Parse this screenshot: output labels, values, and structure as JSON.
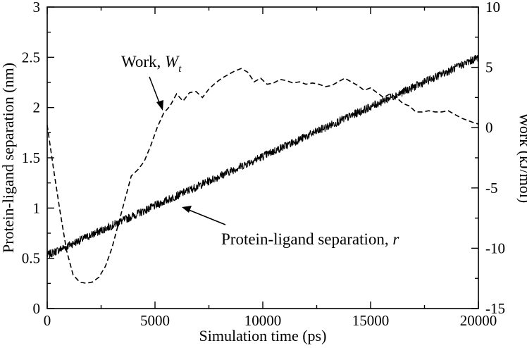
{
  "chart_data": {
    "type": "line",
    "xlabel": "Simulation time (ps)",
    "ylabel_left": "Protein-ligand separation (nm)",
    "ylabel_right": "Work (kJ/mol)",
    "xlim": [
      0,
      20000
    ],
    "ylim_left": [
      0,
      3
    ],
    "ylim_right": [
      -15,
      10
    ],
    "x_ticks": [
      "0",
      "5000",
      "10000",
      "15000",
      "20000"
    ],
    "y_left_ticks": [
      "0",
      "0.5",
      "1",
      "1.5",
      "2",
      "2.5",
      "3"
    ],
    "y_right_ticks": [
      "-15",
      "-10",
      "-5",
      "0",
      "5",
      "10"
    ],
    "series": [
      {
        "name": "Protein-ligand separation, r",
        "axis": "left",
        "style": "solid-noisy",
        "x": [
          0,
          20000
        ],
        "values": [
          0.53,
          2.5
        ],
        "noise_amplitude": 0.04
      },
      {
        "name": "Work, W_t",
        "axis": "right",
        "style": "dashed",
        "x": [
          0,
          300,
          600,
          900,
          1200,
          1500,
          1800,
          2100,
          2400,
          2700,
          3000,
          3300,
          3600,
          3900,
          4200,
          4500,
          4800,
          5100,
          5400,
          5700,
          6000,
          6300,
          6600,
          6900,
          7200,
          7500,
          7800,
          8100,
          8400,
          8700,
          9000,
          9300,
          9600,
          9900,
          10200,
          10500,
          10800,
          11100,
          11400,
          11700,
          12000,
          12300,
          12600,
          12900,
          13200,
          13500,
          13800,
          14100,
          14400,
          14700,
          15000,
          15300,
          15600,
          15900,
          16200,
          16500,
          16800,
          17100,
          17400,
          17700,
          18000,
          18300,
          18600,
          18900,
          19200,
          19500,
          19800,
          20000
        ],
        "values": [
          0.2,
          -3.5,
          -7.0,
          -10.2,
          -12.2,
          -12.8,
          -12.9,
          -12.8,
          -12.4,
          -11.5,
          -10.0,
          -8.0,
          -6.0,
          -4.0,
          -3.5,
          -2.8,
          -1.5,
          0.0,
          1.2,
          1.8,
          2.8,
          2.2,
          2.9,
          3.0,
          2.5,
          3.2,
          3.7,
          4.1,
          4.4,
          4.7,
          4.9,
          4.6,
          3.8,
          4.1,
          3.6,
          3.7,
          4.0,
          3.9,
          3.7,
          3.8,
          3.6,
          3.7,
          3.6,
          3.4,
          3.5,
          3.8,
          4.1,
          3.8,
          3.5,
          3.1,
          3.3,
          2.9,
          2.5,
          2.8,
          2.5,
          2.0,
          1.8,
          1.3,
          1.3,
          1.4,
          1.3,
          1.3,
          1.4,
          1.1,
          0.8,
          0.6,
          0.4,
          0.3
        ]
      }
    ],
    "annotations": {
      "work_label_main": "Work, ",
      "work_label_italic": "W",
      "work_label_sub": "t",
      "sep_label_main": "Protein-ligand separation, ",
      "sep_label_italic": "r"
    }
  }
}
